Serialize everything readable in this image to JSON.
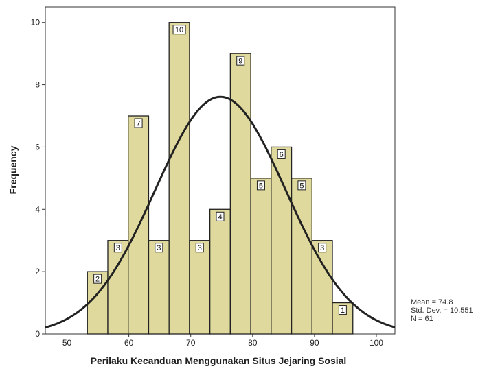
{
  "chart_data": {
    "type": "bar",
    "subtype": "histogram",
    "xlabel": "Perilaku Kecanduan Menggunakan Situs Jejaring Sosial",
    "ylabel": "Frequency",
    "xlim": [
      46.5,
      103
    ],
    "ylim": [
      0,
      10.5
    ],
    "x_ticks": [
      50,
      60,
      70,
      80,
      90,
      100
    ],
    "y_ticks": [
      0,
      2,
      4,
      6,
      8,
      10
    ],
    "bin_width": 3.3,
    "bins": [
      {
        "start": 53.3,
        "value": 2
      },
      {
        "start": 56.6,
        "value": 3
      },
      {
        "start": 59.9,
        "value": 7
      },
      {
        "start": 63.2,
        "value": 3
      },
      {
        "start": 66.5,
        "value": 10
      },
      {
        "start": 69.8,
        "value": 3
      },
      {
        "start": 73.1,
        "value": 4
      },
      {
        "start": 76.4,
        "value": 9
      },
      {
        "start": 79.7,
        "value": 5
      },
      {
        "start": 83.0,
        "value": 6
      },
      {
        "start": 86.3,
        "value": 5
      },
      {
        "start": 89.6,
        "value": 3
      },
      {
        "start": 92.9,
        "value": 1
      }
    ],
    "normal_curve": {
      "mean": 74.8,
      "sd": 10.551,
      "n": 61
    },
    "stats_labels": [
      "Mean = 74.8",
      "Std. Dev. = 10.551",
      "N = 61"
    ],
    "colors": {
      "bar_fill": "#d9d28c",
      "bar_stroke": "#222222",
      "curve": "#222222",
      "label_bg": "#ffffff"
    },
    "grid": false
  }
}
